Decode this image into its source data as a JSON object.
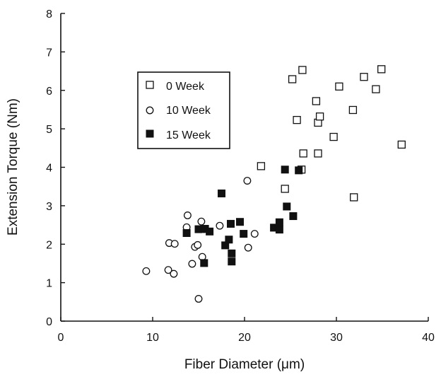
{
  "chart_data": {
    "type": "scatter",
    "xlabel": "Fiber Diameter (μm)",
    "ylabel": "Extension Torque (Nm)",
    "xlim": [
      0,
      40
    ],
    "ylim": [
      0,
      8
    ],
    "xticks": [
      "0",
      "10",
      "20",
      "30",
      "40"
    ],
    "yticks": [
      "0",
      "1",
      "2",
      "3",
      "4",
      "5",
      "6",
      "7",
      "8"
    ],
    "legend_position": "upper-left",
    "series": [
      {
        "name": "0 Week",
        "marker": "open-square",
        "color": "#111111",
        "points": [
          {
            "x": 21.8,
            "y": 4.03
          },
          {
            "x": 24.4,
            "y": 3.44
          },
          {
            "x": 25.2,
            "y": 6.29
          },
          {
            "x": 25.7,
            "y": 5.23
          },
          {
            "x": 26.2,
            "y": 3.94
          },
          {
            "x": 26.3,
            "y": 6.53
          },
          {
            "x": 26.4,
            "y": 4.36
          },
          {
            "x": 27.8,
            "y": 5.72
          },
          {
            "x": 28.0,
            "y": 4.36
          },
          {
            "x": 28.0,
            "y": 5.16
          },
          {
            "x": 28.2,
            "y": 5.32
          },
          {
            "x": 29.7,
            "y": 4.79
          },
          {
            "x": 30.3,
            "y": 6.1
          },
          {
            "x": 31.8,
            "y": 5.49
          },
          {
            "x": 31.9,
            "y": 3.22
          },
          {
            "x": 33.0,
            "y": 6.35
          },
          {
            "x": 34.3,
            "y": 6.03
          },
          {
            "x": 34.9,
            "y": 6.55
          },
          {
            "x": 37.1,
            "y": 4.59
          }
        ]
      },
      {
        "name": "10 Week",
        "marker": "open-circle",
        "color": "#111111",
        "points": [
          {
            "x": 9.3,
            "y": 1.3
          },
          {
            "x": 11.7,
            "y": 1.33
          },
          {
            "x": 11.8,
            "y": 2.03
          },
          {
            "x": 12.3,
            "y": 1.23
          },
          {
            "x": 12.4,
            "y": 2.01
          },
          {
            "x": 13.7,
            "y": 2.44
          },
          {
            "x": 13.8,
            "y": 2.75
          },
          {
            "x": 14.3,
            "y": 1.49
          },
          {
            "x": 14.6,
            "y": 1.93
          },
          {
            "x": 14.9,
            "y": 1.98
          },
          {
            "x": 15.0,
            "y": 0.58
          },
          {
            "x": 15.3,
            "y": 2.59
          },
          {
            "x": 15.4,
            "y": 1.67
          },
          {
            "x": 15.6,
            "y": 2.39
          },
          {
            "x": 17.3,
            "y": 2.48
          },
          {
            "x": 20.3,
            "y": 3.65
          },
          {
            "x": 20.4,
            "y": 1.91
          },
          {
            "x": 21.1,
            "y": 2.27
          }
        ]
      },
      {
        "name": "15 Week",
        "marker": "filled-square",
        "color": "#111111",
        "points": [
          {
            "x": 13.7,
            "y": 2.29
          },
          {
            "x": 15.0,
            "y": 2.39
          },
          {
            "x": 15.6,
            "y": 1.51
          },
          {
            "x": 15.7,
            "y": 2.4
          },
          {
            "x": 16.2,
            "y": 2.33
          },
          {
            "x": 17.5,
            "y": 3.32
          },
          {
            "x": 17.9,
            "y": 1.97
          },
          {
            "x": 18.3,
            "y": 2.12
          },
          {
            "x": 18.5,
            "y": 2.53
          },
          {
            "x": 18.6,
            "y": 1.76
          },
          {
            "x": 18.6,
            "y": 1.55
          },
          {
            "x": 19.5,
            "y": 2.58
          },
          {
            "x": 19.9,
            "y": 2.27
          },
          {
            "x": 23.2,
            "y": 2.43
          },
          {
            "x": 23.8,
            "y": 2.57
          },
          {
            "x": 23.8,
            "y": 2.38
          },
          {
            "x": 24.4,
            "y": 3.94
          },
          {
            "x": 24.6,
            "y": 2.98
          },
          {
            "x": 25.3,
            "y": 2.73
          },
          {
            "x": 25.9,
            "y": 3.92
          }
        ]
      }
    ]
  }
}
